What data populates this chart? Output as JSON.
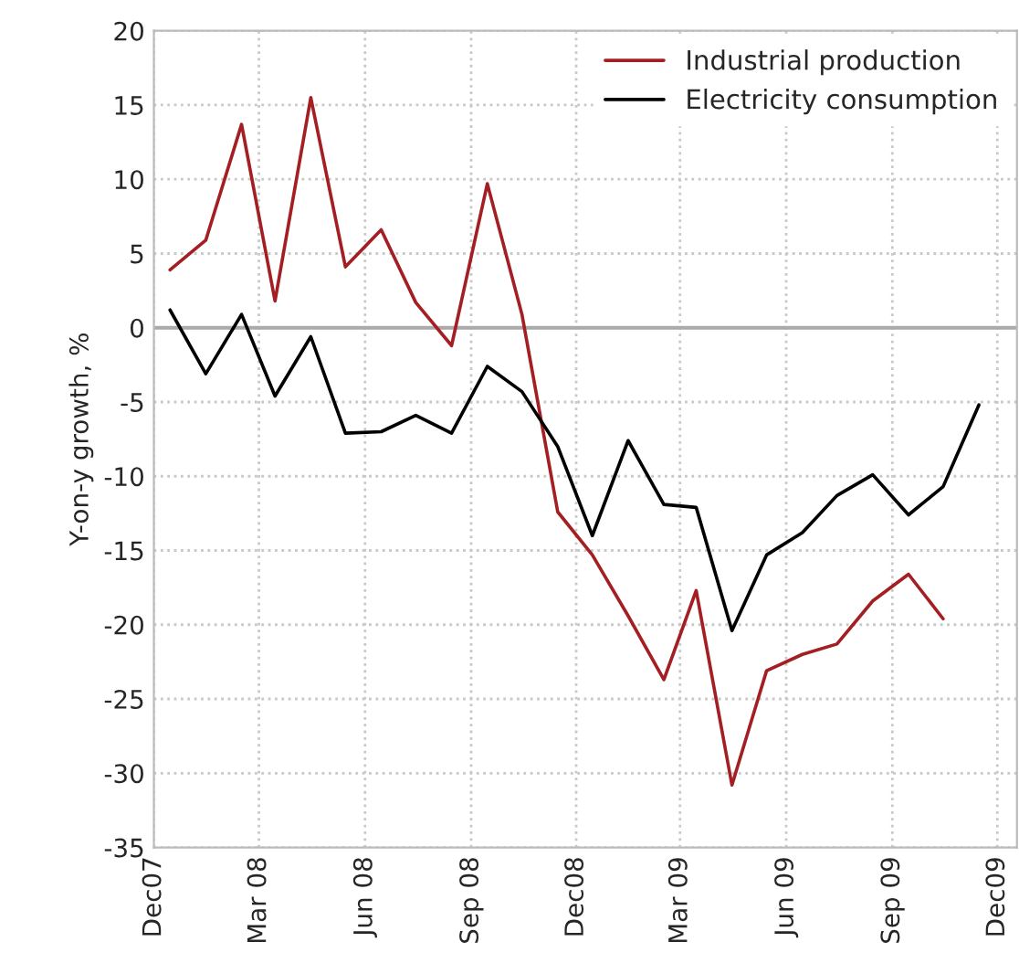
{
  "chart_data": {
    "type": "line",
    "ylabel": "Y-on-y growth, %",
    "x": [
      "2007-12-15",
      "2008-01-15",
      "2008-02-15",
      "2008-03-15",
      "2008-04-15",
      "2008-05-15",
      "2008-06-15",
      "2008-07-15",
      "2008-08-15",
      "2008-09-15",
      "2008-10-15",
      "2008-11-15",
      "2008-12-15",
      "2009-01-15",
      "2009-02-15",
      "2009-03-15",
      "2009-04-15",
      "2009-05-15",
      "2009-06-15",
      "2009-07-15",
      "2009-08-15",
      "2009-09-15",
      "2009-10-15",
      "2009-11-15"
    ],
    "series": [
      {
        "name": "Industrial production",
        "color": "#a31f24",
        "values": [
          3.9,
          5.9,
          13.7,
          1.8,
          15.5,
          4.1,
          6.6,
          1.7,
          -1.2,
          9.7,
          0.9,
          -12.4,
          -15.3,
          -19.4,
          -23.7,
          -17.7,
          -30.8,
          -23.1,
          -22.0,
          -21.3,
          -18.4,
          -16.6,
          -19.6,
          null
        ]
      },
      {
        "name": "Electricity consumption",
        "color": "#000000",
        "values": [
          1.2,
          -3.1,
          0.9,
          -4.6,
          -0.6,
          -7.1,
          -7.0,
          -5.9,
          -7.1,
          -2.6,
          -4.3,
          -8.0,
          -14.0,
          -7.6,
          -11.9,
          -12.1,
          -20.4,
          -15.3,
          -13.8,
          -11.3,
          -9.9,
          -12.6,
          -10.7,
          -5.2
        ]
      }
    ],
    "xlim": [
      "2007-12-01",
      "2009-12-18"
    ],
    "xticks": [
      {
        "value": "2007-12-01",
        "label": "Dec07"
      },
      {
        "value": "2008-03-01",
        "label": "Mar 08"
      },
      {
        "value": "2008-06-01",
        "label": "Jun 08"
      },
      {
        "value": "2008-09-01",
        "label": "Sep 08"
      },
      {
        "value": "2008-12-01",
        "label": "Dec08"
      },
      {
        "value": "2009-03-01",
        "label": "Mar 09"
      },
      {
        "value": "2009-06-01",
        "label": "Jun 09"
      },
      {
        "value": "2009-09-01",
        "label": "Sep 09"
      },
      {
        "value": "2009-12-01",
        "label": "Dec09"
      }
    ],
    "ylim": [
      -35,
      20
    ],
    "yticks": [
      -35,
      -30,
      -25,
      -20,
      -15,
      -10,
      -5,
      0,
      5,
      10,
      15,
      20
    ],
    "ref_lines": [
      {
        "axis": "y",
        "value": 0,
        "color": "#aaaaaa",
        "line_style": "solid"
      }
    ],
    "grid": true,
    "legend": "top right",
    "marker": "none",
    "line_style": "solid"
  }
}
